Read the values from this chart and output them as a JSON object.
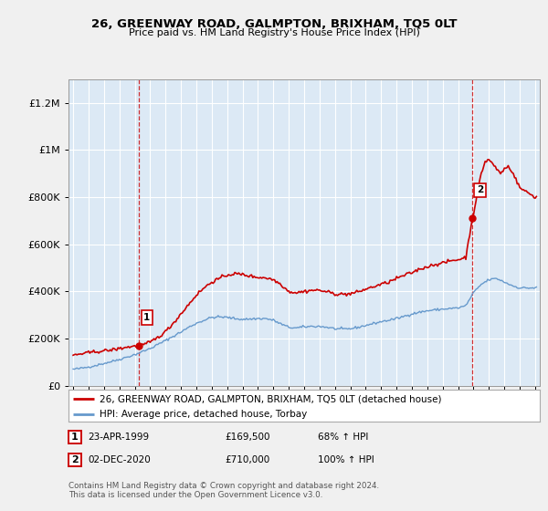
{
  "title": "26, GREENWAY ROAD, GALMPTON, BRIXHAM, TQ5 0LT",
  "subtitle": "Price paid vs. HM Land Registry's House Price Index (HPI)",
  "footer": "Contains HM Land Registry data © Crown copyright and database right 2024.\nThis data is licensed under the Open Government Licence v3.0.",
  "legend_line1": "26, GREENWAY ROAD, GALMPTON, BRIXHAM, TQ5 0LT (detached house)",
  "legend_line2": "HPI: Average price, detached house, Torbay",
  "transaction1_label": "1",
  "transaction1_date": "23-APR-1999",
  "transaction1_price": "£169,500",
  "transaction1_hpi": "68% ↑ HPI",
  "transaction2_label": "2",
  "transaction2_date": "02-DEC-2020",
  "transaction2_price": "£710,000",
  "transaction2_hpi": "100% ↑ HPI",
  "red_color": "#cc0000",
  "blue_color": "#6699cc",
  "background_color": "#f0f0f0",
  "plot_background": "#dce9f5",
  "grid_color": "#ffffff",
  "ylim": [
    0,
    1300000
  ],
  "yticks": [
    0,
    200000,
    400000,
    600000,
    800000,
    1000000,
    1200000
  ],
  "ytick_labels": [
    "£0",
    "£200K",
    "£400K",
    "£600K",
    "£800K",
    "£1M",
    "£1.2M"
  ],
  "sale1_x": 1999.29,
  "sale1_y": 169500,
  "sale2_x": 2020.92,
  "sale2_y": 710000,
  "xlim": [
    1994.7,
    2025.3
  ],
  "xticks": [
    1995,
    1996,
    1997,
    1998,
    1999,
    2000,
    2001,
    2002,
    2003,
    2004,
    2005,
    2006,
    2007,
    2008,
    2009,
    2010,
    2011,
    2012,
    2013,
    2014,
    2015,
    2016,
    2017,
    2018,
    2019,
    2020,
    2021,
    2022,
    2023,
    2024,
    2025
  ],
  "hpi_anchor_x": [
    1995.0,
    1995.5,
    1996.0,
    1996.5,
    1997.0,
    1997.5,
    1998.0,
    1998.5,
    1999.0,
    1999.5,
    2000.0,
    2000.5,
    2001.0,
    2001.5,
    2002.0,
    2002.5,
    2003.0,
    2003.5,
    2004.0,
    2004.5,
    2005.0,
    2005.5,
    2006.0,
    2006.5,
    2007.0,
    2007.5,
    2008.0,
    2008.5,
    2009.0,
    2009.5,
    2010.0,
    2010.5,
    2011.0,
    2011.5,
    2012.0,
    2012.5,
    2013.0,
    2013.5,
    2014.0,
    2014.5,
    2015.0,
    2015.5,
    2016.0,
    2016.5,
    2017.0,
    2017.5,
    2018.0,
    2018.5,
    2019.0,
    2019.5,
    2020.0,
    2020.5,
    2021.0,
    2021.5,
    2022.0,
    2022.5,
    2023.0,
    2023.5,
    2024.0,
    2024.5,
    2025.0
  ],
  "hpi_anchor_y": [
    70000,
    74000,
    80000,
    87000,
    95000,
    103000,
    112000,
    122000,
    132000,
    145000,
    158000,
    175000,
    192000,
    210000,
    228000,
    248000,
    265000,
    278000,
    290000,
    292000,
    290000,
    285000,
    282000,
    283000,
    285000,
    285000,
    278000,
    262000,
    248000,
    245000,
    250000,
    252000,
    252000,
    248000,
    242000,
    240000,
    242000,
    248000,
    256000,
    264000,
    272000,
    278000,
    285000,
    295000,
    305000,
    312000,
    318000,
    322000,
    325000,
    328000,
    330000,
    340000,
    395000,
    430000,
    450000,
    455000,
    440000,
    425000,
    415000,
    415000,
    415000
  ],
  "red_anchor_x": [
    1995.0,
    1995.5,
    1996.0,
    1996.5,
    1997.0,
    1997.5,
    1998.0,
    1998.5,
    1999.0,
    1999.29,
    1999.5,
    2000.0,
    2000.5,
    2001.0,
    2001.5,
    2002.0,
    2002.5,
    2003.0,
    2003.5,
    2004.0,
    2004.5,
    2005.0,
    2005.5,
    2006.0,
    2006.5,
    2007.0,
    2007.5,
    2008.0,
    2008.5,
    2009.0,
    2009.5,
    2010.0,
    2010.5,
    2011.0,
    2011.5,
    2012.0,
    2012.5,
    2013.0,
    2013.5,
    2014.0,
    2014.5,
    2015.0,
    2015.5,
    2016.0,
    2016.5,
    2017.0,
    2017.5,
    2018.0,
    2018.5,
    2019.0,
    2019.5,
    2020.0,
    2020.5,
    2020.92,
    2021.0,
    2021.25,
    2021.5,
    2021.75,
    2022.0,
    2022.25,
    2022.5,
    2022.75,
    2023.0,
    2023.25,
    2023.5,
    2024.0,
    2024.5,
    2025.0
  ],
  "red_anchor_y": [
    130000,
    135000,
    140000,
    145000,
    148000,
    152000,
    158000,
    164000,
    168000,
    169500,
    172000,
    185000,
    205000,
    230000,
    265000,
    305000,
    345000,
    385000,
    415000,
    440000,
    455000,
    470000,
    475000,
    472000,
    465000,
    460000,
    458000,
    450000,
    430000,
    400000,
    395000,
    400000,
    405000,
    405000,
    398000,
    390000,
    388000,
    390000,
    398000,
    410000,
    420000,
    430000,
    440000,
    455000,
    468000,
    480000,
    495000,
    505000,
    515000,
    520000,
    530000,
    535000,
    545000,
    710000,
    730000,
    820000,
    900000,
    950000,
    960000,
    940000,
    920000,
    900000,
    920000,
    930000,
    910000,
    840000,
    820000,
    800000
  ]
}
